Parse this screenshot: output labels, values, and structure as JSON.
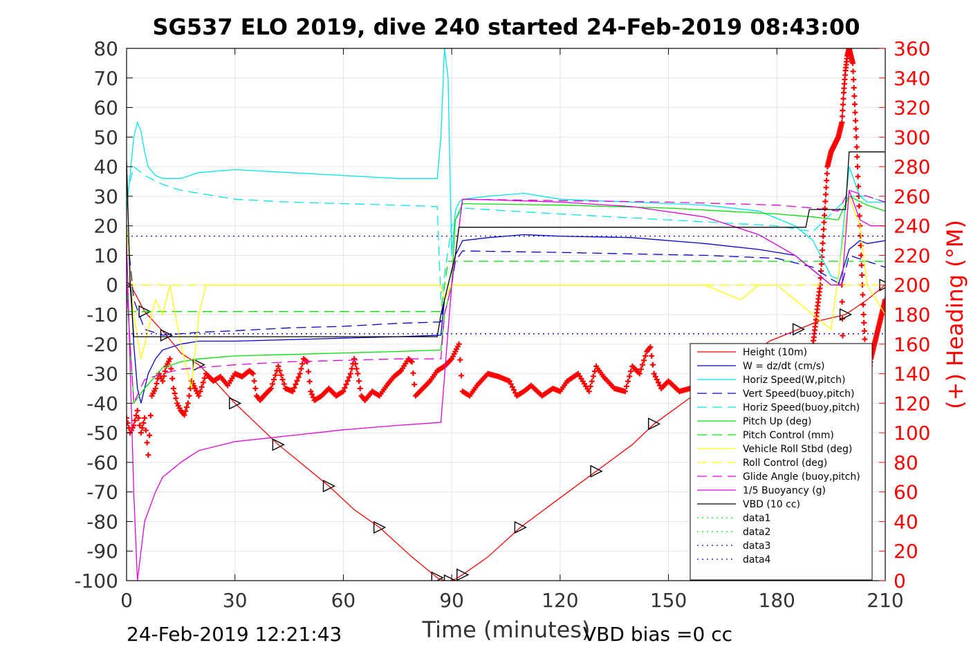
{
  "chart_data": {
    "type": "line",
    "title": "SG537 ELO 2019, dive 240 started 24-Feb-2019 08:43:00",
    "xlabel": "Time (minutes)",
    "ylabel": "",
    "y2label": "(+) Heading (°M)",
    "xlim": [
      0,
      210
    ],
    "ylim": [
      -100,
      80
    ],
    "y2lim": [
      0,
      360
    ],
    "x_ticks": [
      0,
      30,
      60,
      90,
      120,
      150,
      180,
      210
    ],
    "y_ticks": [
      80,
      70,
      60,
      50,
      40,
      30,
      20,
      10,
      0,
      -10,
      -20,
      -30,
      -40,
      -50,
      -60,
      -70,
      -80,
      -90,
      -100
    ],
    "y2_ticks": [
      360,
      340,
      320,
      300,
      280,
      260,
      240,
      220,
      200,
      180,
      160,
      140,
      120,
      100,
      80,
      60,
      40,
      20,
      0
    ],
    "grid": true,
    "legend_position": "lower-right",
    "footer_left": "24-Feb-2019 12:21:43",
    "footer_right": "VBD bias =0 cc",
    "colors": {
      "heading": "#ff0000",
      "red": "#ff0000",
      "blue": "#0000cd",
      "cyan": "#00e5ee",
      "green": "#00e000",
      "yellow": "#ffff00",
      "magenta": "#e000e0",
      "black": "#000000"
    },
    "series": [
      {
        "name": "Height (10m)",
        "color": "#ff0000",
        "dash": "solid",
        "marker": "triangles",
        "x": [
          0,
          2,
          5,
          8,
          11,
          15,
          20,
          24,
          30,
          36,
          42,
          50,
          56,
          63,
          70,
          79,
          86,
          88,
          89.5,
          91,
          93,
          100,
          109,
          120,
          130,
          140,
          146,
          155,
          165,
          178,
          186,
          192,
          199,
          205,
          210
        ],
        "y": [
          0,
          -2,
          -9,
          -13,
          -17,
          -23,
          -27,
          -32,
          -40,
          -47,
          -54,
          -62,
          -68,
          -76,
          -82,
          -92,
          -99,
          -100,
          -100,
          -99.5,
          -98,
          -92,
          -82,
          -72,
          -63,
          -54,
          -47,
          -39,
          -30,
          -19,
          -15,
          -12,
          -10,
          -5,
          0
        ]
      },
      {
        "name": "W = dz/dt (cm/s)",
        "color": "#0000cd",
        "dash": "solid",
        "x": [
          0,
          1,
          2,
          3,
          4,
          6,
          8,
          10,
          15,
          20,
          30,
          45,
          60,
          75,
          87,
          88,
          90,
          91,
          93,
          100,
          110,
          120,
          140,
          160,
          175,
          185,
          190,
          195,
          197,
          200,
          203,
          205,
          210
        ],
        "y": [
          20,
          5,
          -20,
          -35,
          -40,
          -30,
          -25,
          -22,
          -20,
          -19,
          -19,
          -18.5,
          -18,
          -17.5,
          -17,
          -5,
          0,
          10,
          15,
          16,
          17,
          16.5,
          16,
          14,
          12,
          10,
          5,
          0,
          0,
          12,
          15,
          14,
          15
        ]
      },
      {
        "name": "Horiz Speed(W,pitch)",
        "color": "#00e5ee",
        "dash": "solid",
        "x": [
          0,
          2,
          3,
          4,
          5,
          6,
          8,
          10,
          15,
          20,
          30,
          45,
          60,
          75,
          86,
          87,
          88,
          89,
          90,
          91,
          92,
          93,
          100,
          110,
          120,
          140,
          160,
          175,
          185,
          190,
          195,
          197,
          200,
          203,
          205,
          210
        ],
        "y": [
          25,
          50,
          55,
          52,
          45,
          40,
          37,
          36,
          36,
          38,
          39,
          38,
          37,
          36,
          36,
          50,
          80,
          70,
          10,
          25,
          28,
          29,
          30,
          31,
          29,
          28,
          27,
          25,
          20,
          15,
          3,
          2,
          40,
          30,
          28,
          28
        ]
      },
      {
        "name": "Vert Speed(buoy,pitch)",
        "color": "#0000cd",
        "dash": "dashed",
        "x": [
          0,
          2,
          5,
          10,
          15,
          20,
          30,
          45,
          60,
          75,
          87,
          88,
          90,
          91,
          93,
          120,
          160,
          180,
          190,
          195,
          198,
          200,
          210
        ],
        "y": [
          20,
          -5,
          -15,
          -17,
          -16.5,
          -16,
          -15.5,
          -14.5,
          -14,
          -13,
          -12.5,
          -5,
          0,
          8,
          11.5,
          11,
          10,
          9,
          6,
          2,
          0,
          10,
          6
        ]
      },
      {
        "name": "Horiz Speed(buoy,pitch)",
        "color": "#00e5ee",
        "dash": "dashed",
        "x": [
          0,
          2,
          5,
          10,
          15,
          20,
          30,
          45,
          60,
          75,
          86,
          87,
          90,
          93,
          120,
          150,
          180,
          190,
          200,
          205,
          210
        ],
        "y": [
          30,
          40,
          37,
          34,
          32,
          31,
          29,
          28,
          27.5,
          27,
          26.5,
          -5,
          20,
          26,
          24,
          22,
          20,
          18,
          30,
          30,
          28
        ]
      },
      {
        "name": "Pitch Up (deg)",
        "color": "#00e000",
        "dash": "solid",
        "x": [
          0,
          2,
          5,
          10,
          15,
          20,
          30,
          45,
          60,
          75,
          87,
          88,
          90,
          91,
          93,
          120,
          150,
          180,
          190,
          197,
          200,
          205,
          210
        ],
        "y": [
          0,
          -40,
          -35,
          -28,
          -26,
          -25,
          -24,
          -23.5,
          -23,
          -22.5,
          -22,
          -10,
          0,
          22,
          27.5,
          27,
          26,
          24,
          23,
          22,
          30,
          27,
          25
        ]
      },
      {
        "name": "Pitch Control (mm)",
        "color": "#00e000",
        "dash": "dashed",
        "x": [
          0,
          10,
          87,
          89,
          93,
          175,
          200,
          210
        ],
        "y": [
          -9,
          -9,
          -9,
          8,
          8,
          8,
          8,
          8
        ]
      },
      {
        "name": "Vehicle Roll Stbd (deg)",
        "color": "#ffff00",
        "dash": "solid",
        "x": [
          0,
          2,
          4,
          6,
          8,
          10,
          12,
          15,
          18,
          20,
          22,
          30,
          40,
          50,
          60,
          70,
          80,
          87,
          88,
          90,
          93,
          100,
          120,
          140,
          160,
          170,
          175,
          180,
          190,
          195,
          200,
          203,
          205,
          210
        ],
        "y": [
          20,
          -10,
          -25,
          -15,
          -5,
          -10,
          0,
          -20,
          -35,
          -10,
          0,
          0,
          0,
          0,
          0,
          0,
          0,
          0,
          -5,
          0,
          0,
          0,
          0,
          0,
          0,
          -5,
          0,
          0,
          -10,
          -15,
          30,
          20,
          0,
          -10
        ]
      },
      {
        "name": "Roll Control (deg)",
        "color": "#ffff00",
        "dash": "dashed",
        "x": [
          0,
          210
        ],
        "y": [
          0,
          0
        ]
      },
      {
        "name": "Glide Angle (buoy,pitch)",
        "color": "#e000e0",
        "dash": "dashed",
        "x": [
          0,
          2,
          5,
          10,
          15,
          20,
          30,
          45,
          60,
          75,
          87,
          88,
          90,
          93,
          120,
          150,
          180,
          190,
          197,
          200,
          205,
          210
        ],
        "y": [
          0,
          -40,
          -32,
          -30,
          -28.5,
          -28,
          -27,
          -26,
          -25.5,
          -25,
          -25,
          -10,
          0,
          29,
          28.5,
          28,
          27,
          26,
          25,
          32,
          30,
          28
        ]
      },
      {
        "name": "1/5 Buoyancy (g)",
        "color": "#e000e0",
        "dash": "solid",
        "x": [
          0,
          2,
          3,
          5,
          8,
          10,
          15,
          20,
          30,
          45,
          60,
          75,
          87,
          90,
          93,
          100,
          120,
          140,
          160,
          175,
          185,
          190,
          195,
          198,
          200,
          203,
          206,
          210
        ],
        "y": [
          15,
          -70,
          -100,
          -80,
          -70,
          -65,
          -60,
          -56,
          -53,
          -51,
          -49,
          -47.5,
          -46.5,
          0,
          29,
          28.8,
          28,
          26.5,
          23,
          17,
          10,
          5,
          0,
          0,
          32,
          22,
          20,
          20
        ]
      },
      {
        "name": "VBD (10 cc)",
        "color": "#000000",
        "dash": "solid",
        "x": [
          0,
          1,
          2,
          3,
          86,
          87,
          88,
          89,
          91,
          92,
          188,
          189,
          199,
          200,
          210
        ],
        "y": [
          42,
          0,
          -17.5,
          -17.5,
          -17.5,
          -10,
          -5,
          0,
          10,
          19.5,
          19.5,
          25.5,
          25.5,
          45,
          45
        ]
      },
      {
        "name": "data1",
        "color": "#00e000",
        "dash": "dotted",
        "x": [],
        "y": []
      },
      {
        "name": "data2",
        "color": "#00e000",
        "dash": "dotted",
        "x": [],
        "y": []
      },
      {
        "name": "data3",
        "color": "#0000cd",
        "dash": "dotted",
        "x": [
          0,
          210
        ],
        "y": [
          16.5,
          16.5
        ]
      },
      {
        "name": "data4",
        "color": "#0000cd",
        "dash": "dotted",
        "x": [
          0,
          210
        ],
        "y": [
          -16.5,
          -16.5
        ]
      }
    ],
    "heading_series": {
      "name": "Heading",
      "axis": "right",
      "marker": "+",
      "color": "#ff0000",
      "x": [
        0,
        1,
        2,
        3,
        4,
        5,
        6,
        7,
        8,
        9,
        10,
        11,
        12,
        13,
        14,
        15,
        16,
        17,
        18,
        19,
        20,
        22,
        24,
        26,
        28,
        30,
        32,
        34,
        35,
        36,
        37,
        38,
        40,
        42,
        44,
        46,
        48,
        49,
        50,
        51,
        52,
        54,
        56,
        58,
        60,
        62,
        63,
        64,
        65,
        66,
        68,
        70,
        72,
        74,
        76,
        78,
        79,
        80,
        82,
        84,
        86,
        88,
        90,
        91,
        92,
        93,
        95,
        97,
        100,
        103,
        106,
        108,
        110,
        112,
        115,
        118,
        120,
        122,
        125,
        128,
        130,
        132,
        135,
        138,
        140,
        142,
        144,
        145,
        146,
        148,
        150,
        153,
        156,
        158
      ],
      "y": [
        110,
        100,
        105,
        115,
        100,
        110,
        85,
        125,
        130,
        140,
        135,
        145,
        150,
        130,
        120,
        115,
        112,
        120,
        135,
        130,
        125,
        140,
        135,
        138,
        132,
        140,
        138,
        142,
        140,
        125,
        122,
        125,
        130,
        145,
        130,
        128,
        140,
        150,
        148,
        128,
        122,
        125,
        130,
        125,
        128,
        140,
        150,
        140,
        125,
        122,
        128,
        125,
        132,
        138,
        142,
        150,
        148,
        125,
        130,
        135,
        142,
        145,
        150,
        155,
        160,
        128,
        125,
        132,
        140,
        138,
        135,
        125,
        128,
        132,
        125,
        130,
        128,
        135,
        140,
        128,
        145,
        138,
        130,
        128,
        145,
        140,
        155,
        158,
        140,
        130,
        135,
        128,
        130,
        135
      ]
    },
    "heading_series_late": {
      "x": [
        188,
        190,
        192,
        194,
        195,
        196,
        197,
        198,
        198.5,
        199,
        199.5,
        200,
        200.5,
        201,
        202,
        203,
        204,
        205,
        206,
        207,
        208,
        209,
        210
      ],
      "y": [
        125,
        160,
        200,
        280,
        290,
        295,
        300,
        310,
        330,
        345,
        355,
        360,
        355,
        350,
        300,
        240,
        180,
        130,
        150,
        160,
        170,
        180,
        190
      ]
    },
    "heading_series_late_spike": {
      "x": [
        198,
        198.5,
        199,
        199.5
      ],
      "y": [
        200,
        120,
        40,
        5
      ]
    }
  }
}
